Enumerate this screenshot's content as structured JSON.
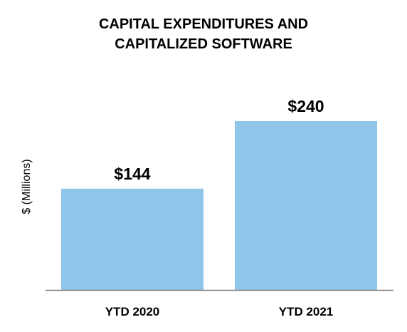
{
  "chart_data": {
    "type": "bar",
    "title_lines": [
      "CAPITAL EXPENDITURES AND",
      "CAPITALIZED SOFTWARE"
    ],
    "ylabel": "$ (Millions)",
    "xlabel": "",
    "categories": [
      "YTD 2020",
      "YTD 2021"
    ],
    "values": [
      144,
      240
    ],
    "data_labels": [
      "$144",
      "$240"
    ],
    "ylim": [
      0,
      240
    ],
    "grid": false,
    "legend": "none",
    "bar_color": "#8FC6EA",
    "axis_color": "#7F7F7F"
  }
}
